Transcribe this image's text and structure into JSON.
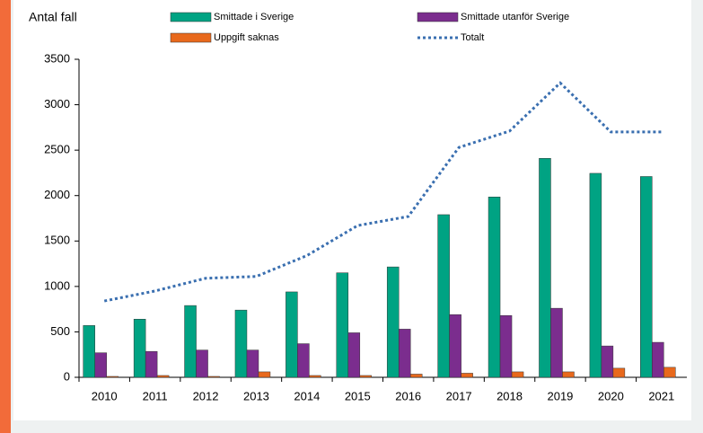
{
  "chart_data": {
    "type": "bar",
    "y_label": "Antal fall",
    "categories": [
      "2010",
      "2011",
      "2012",
      "2013",
      "2014",
      "2015",
      "2016",
      "2017",
      "2018",
      "2019",
      "2020",
      "2021"
    ],
    "series": [
      {
        "name": "Smittade i Sverige",
        "color": "#00a383",
        "type": "bar",
        "values": [
          570,
          640,
          790,
          740,
          940,
          1150,
          1215,
          1790,
          1985,
          2410,
          2245,
          2210
        ]
      },
      {
        "name": "Smittade utanför Sverige",
        "color": "#7b2d8e",
        "type": "bar",
        "values": [
          270,
          285,
          300,
          300,
          370,
          490,
          530,
          690,
          680,
          760,
          345,
          385
        ]
      },
      {
        "name": "Uppgift saknas",
        "color": "#e8691c",
        "type": "bar",
        "values": [
          10,
          20,
          10,
          60,
          20,
          20,
          35,
          45,
          60,
          60,
          100,
          110
        ]
      },
      {
        "name": "Totalt",
        "color": "#3a6fb0",
        "type": "line",
        "values": [
          840,
          950,
          1090,
          1110,
          1340,
          1670,
          1770,
          2530,
          2710,
          3240,
          2700,
          2700
        ]
      }
    ],
    "ylim": [
      0,
      3500
    ],
    "yticks": [
      0,
      500,
      1000,
      1500,
      2000,
      2500,
      3000,
      3500
    ],
    "legend": "top",
    "grid": false
  }
}
